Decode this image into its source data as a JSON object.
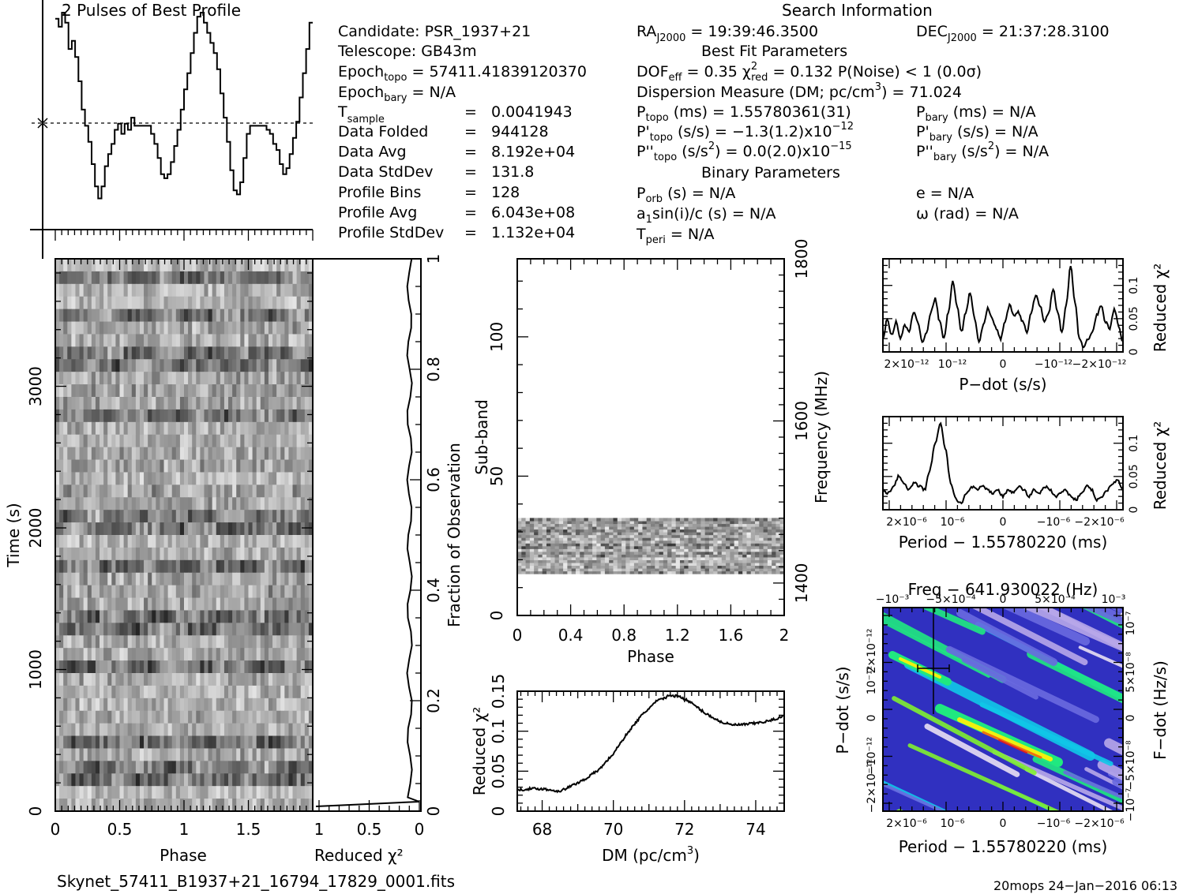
{
  "header": {
    "profile_title": "2 Pulses of Best Profile",
    "search_info_title": "Search Information",
    "best_fit_title": "Best Fit Parameters",
    "binary_title": "Binary Parameters"
  },
  "search_info": {
    "candidate": "Candidate:  PSR_1937+21",
    "telescope": "Telescope:  GB43m",
    "epoch_topo_pre": "Epoch",
    "epoch_topo_sub": "topo",
    "epoch_topo_val": " = 57411.41839120370",
    "epoch_bary_pre": "Epoch",
    "epoch_bary_sub": "bary",
    "epoch_bary_val": " = N/A",
    "tsample_pre": "T",
    "tsample_sub": "sample",
    "tsample_eq": "=",
    "tsample_val": "0.0041943",
    "rows": [
      {
        "label": "Data Folded",
        "eq": "=",
        "value": "944128"
      },
      {
        "label": "Data Avg",
        "eq": "=",
        "value": "8.192e+04"
      },
      {
        "label": "Data StdDev",
        "eq": "=",
        "value": "131.8"
      },
      {
        "label": "Profile Bins",
        "eq": "=",
        "value": "128"
      },
      {
        "label": "Profile Avg",
        "eq": "=",
        "value": "6.043e+08"
      },
      {
        "label": "Profile StdDev",
        "eq": "=",
        "value": "1.132e+04"
      }
    ],
    "ra_pre": "RA",
    "ra_sub": "J2000",
    "ra_val": " = 19:39:46.3500",
    "dec_pre": "DEC",
    "dec_sub": "J2000",
    "dec_val": " = 21:37:28.3100"
  },
  "best_fit": {
    "dof_pre": "DOF",
    "dof_sub": "eff",
    "dof_val": " = 0.35  χ",
    "chi_sup": "2",
    "chi_sub": "red",
    "chi_val": " = 0.132  P(Noise) < 1  (0.0σ)",
    "dm_line_a": "Dispersion Measure (DM; pc/cm",
    "dm_sup": "3",
    "dm_line_b": ") = 71.024",
    "ptopo_pre": "P",
    "ptopo_sub": "topo",
    "ptopo_val": " (ms) =  1.55780361(31)",
    "pdtopo_pre": "P'",
    "pdtopo_sub": "topo",
    "pdtopo_val": " (s/s) = −1.3(1.2)x10",
    "pdtopo_sup": "−12",
    "pddtopo_pre": "P''",
    "pddtopo_sub": "topo",
    "pddtopo_val": " (s/s",
    "pddtopo_sup1": "2",
    "pddtopo_val2": ") = 0.0(2.0)x10",
    "pddtopo_sup2": "−15",
    "pbary_pre": "P",
    "pbary_sub": "bary",
    "pbary_val": " (ms) = N/A",
    "pdbary_pre": "P'",
    "pdbary_sub": "bary",
    "pdbary_val": " (s/s) = N/A",
    "pddbary_pre": "P''",
    "pddbary_sub": "bary",
    "pddbary_val": " (s/s",
    "pddbary_sup": "2",
    "pddbary_val2": ") = N/A"
  },
  "binary": {
    "porb_pre": "P",
    "porb_sub": "orb",
    "porb_val": " (s) = N/A",
    "a1_pre": "a",
    "a1_sub": "1",
    "a1_val": "sin(i)/c (s) = N/A",
    "tperi_pre": "T",
    "tperi_sub": "peri",
    "tperi_val": " = N/A",
    "e": "e = N/A",
    "omega": "ω (rad) = N/A"
  },
  "footer": {
    "filename": "Skynet_57411_B1937+21_16794_17829_0001.fits",
    "stamp": "20mops 24−Jan−2016 06:13"
  },
  "chart_data": [
    {
      "type": "line",
      "id": "pulse-profile",
      "title": "2 Pulses of Best Profile",
      "x": "phase 0-2 (two rotations)",
      "values": [
        0.97,
        0.93,
        1.0,
        0.95,
        0.82,
        0.86,
        0.78,
        0.66,
        0.52,
        0.44,
        0.36,
        0.25,
        0.14,
        0.08,
        0.14,
        0.24,
        0.3,
        0.35,
        0.42,
        0.45,
        0.4,
        0.45,
        0.42,
        0.48,
        0.44,
        0.44,
        0.44,
        0.44,
        0.44,
        0.4,
        0.35,
        0.28,
        0.2,
        0.18,
        0.2,
        0.26,
        0.34,
        0.42,
        0.52,
        0.62,
        0.7,
        0.8,
        0.9,
        0.98,
        1.0,
        0.95,
        0.9,
        0.85,
        0.8,
        0.72,
        0.6,
        0.48,
        0.36,
        0.22,
        0.12,
        0.1,
        0.16,
        0.28,
        0.4,
        0.44,
        0.44,
        0.44,
        0.44,
        0.44,
        0.42,
        0.4,
        0.35,
        0.32,
        0.25,
        0.2,
        0.23,
        0.3,
        0.38,
        0.46,
        0.58,
        0.7,
        0.82,
        0.95
      ],
      "avg": 0.44,
      "error_bar": true
    },
    {
      "type": "heatmap",
      "id": "time-phase",
      "xlabel": "Phase",
      "ylabel": "Time (s)",
      "xlim": [
        0,
        2
      ],
      "ylim": [
        0,
        3900
      ],
      "xticks": [
        0,
        0.5,
        1,
        1.5
      ],
      "yticks": [
        0,
        1000,
        2000,
        3000
      ],
      "colormap": "grayscale",
      "rows": 44,
      "cols": 64
    },
    {
      "type": "line",
      "id": "time-chi2",
      "xlabel": "Reduced χ²",
      "y2label": "Fraction of Observation",
      "xticks": [
        1,
        0.5,
        0
      ],
      "y2ticks": [
        0,
        0.2,
        0.4,
        0.6,
        0.8,
        1
      ]
    },
    {
      "type": "heatmap",
      "id": "subband-phase",
      "xlabel": "Phase",
      "ylabel": "Sub-band",
      "y2label": "Frequency (MHz)",
      "xlim": [
        0,
        2
      ],
      "ylim": [
        0,
        128
      ],
      "xticks": [
        0,
        0.4,
        0.8,
        1.2,
        1.6,
        2
      ],
      "yticks": [
        0,
        50,
        100
      ],
      "y2ticks": [
        1400,
        1600,
        1800
      ],
      "occupied_subbands": [
        15,
        35
      ],
      "colormap": "grayscale"
    },
    {
      "type": "line",
      "id": "dm-chi2",
      "xlabel": "DM (pc/cm",
      "xlabel_sup": "3",
      "xlabel_end": ")",
      "ylabel": "Reduced χ²",
      "xlim": [
        67.3,
        74.8
      ],
      "ylim": [
        0,
        0.15
      ],
      "xticks": [
        68,
        70,
        72,
        74
      ],
      "yticks": [
        0,
        0.05,
        0.1,
        0.15
      ],
      "x": [
        67.3,
        67.6,
        68.0,
        68.3,
        68.5,
        68.8,
        69.2,
        69.6,
        70.0,
        70.4,
        70.8,
        71.2,
        71.6,
        71.9,
        72.2,
        72.6,
        73.0,
        73.3,
        73.6,
        74.0,
        74.4,
        74.8
      ],
      "y": [
        0.026,
        0.028,
        0.028,
        0.026,
        0.025,
        0.031,
        0.04,
        0.052,
        0.072,
        0.098,
        0.12,
        0.137,
        0.145,
        0.143,
        0.135,
        0.122,
        0.112,
        0.108,
        0.108,
        0.11,
        0.113,
        0.119
      ]
    },
    {
      "type": "line",
      "id": "pdot-chi2",
      "xlabel": "P−dot (s/s)",
      "ylabel": "Reduced χ²",
      "ylim": [
        0,
        0.14
      ],
      "xticks": [
        "2×10⁻¹²",
        "10⁻¹²",
        "0",
        "−10⁻¹²",
        "−2×10⁻¹²"
      ],
      "yticks": [
        0,
        0.05,
        0.1
      ],
      "values": [
        0.02,
        0.05,
        0.025,
        0.045,
        0.02,
        0.04,
        0.03,
        0.06,
        0.045,
        0.015,
        0.03,
        0.06,
        0.08,
        0.045,
        0.02,
        0.06,
        0.105,
        0.07,
        0.03,
        0.06,
        0.09,
        0.05,
        0.015,
        0.04,
        0.065,
        0.05,
        0.035,
        0.02,
        0.045,
        0.07,
        0.055,
        0.06,
        0.045,
        0.03,
        0.06,
        0.085,
        0.07,
        0.045,
        0.06,
        0.095,
        0.06,
        0.03,
        0.07,
        0.13,
        0.075,
        0.02,
        0.005,
        0.02,
        0.03,
        0.055,
        0.07,
        0.045,
        0.035,
        0.065,
        0.04,
        0.015
      ]
    },
    {
      "type": "line",
      "id": "period-chi2",
      "xlabel": "Period − 1.55780220 (ms)",
      "ylabel": "Reduced χ²",
      "ylim": [
        0,
        0.14
      ],
      "xticks": [
        "2×10⁻⁶",
        "10⁻⁶",
        "0",
        "−10⁻⁶",
        "−2×10⁻⁶"
      ],
      "yticks": [
        0,
        0.05,
        0.1
      ],
      "values": [
        0.03,
        0.025,
        0.035,
        0.05,
        0.04,
        0.03,
        0.04,
        0.035,
        0.03,
        0.06,
        0.1,
        0.13,
        0.09,
        0.04,
        0.015,
        0.01,
        0.025,
        0.035,
        0.03,
        0.035,
        0.03,
        0.025,
        0.03,
        0.02,
        0.03,
        0.025,
        0.035,
        0.03,
        0.02,
        0.03,
        0.025,
        0.035,
        0.03,
        0.02,
        0.025,
        0.03,
        0.02,
        0.015,
        0.025,
        0.035,
        0.03,
        0.015,
        0.02,
        0.03,
        0.04,
        0.045,
        0.03
      ]
    },
    {
      "type": "heatmap",
      "id": "period-pdot",
      "title": "Freq − 641.930022 (Hz)",
      "xlabel": "Period − 1.55780220 (ms)",
      "ylabel": "P−dot (s/s)",
      "y2label": "F−dot (Hz/s)",
      "xticks": [
        "2×10⁻⁶",
        "10⁻⁶",
        "0",
        "−10⁻⁶",
        "−2×10⁻⁶"
      ],
      "x2ticks": [
        "−10⁻³",
        "−5×10⁻⁴",
        "0",
        "5×10⁻⁴",
        "10⁻³"
      ],
      "yticks": [
        "2×10⁻¹²",
        "10⁻¹²",
        "0",
        "−10⁻¹²",
        "−2×10⁻¹²"
      ],
      "y2ticks": [
        "10⁻⁷",
        "5×10⁻⁸",
        "0",
        "−5×10⁻⁸",
        "−10⁻⁷"
      ],
      "colormap": "rainbow",
      "colors": [
        "#3030c0",
        "#6a6ae0",
        "#b8a8ea",
        "#e8e0f4",
        "#10c8e8",
        "#20e880",
        "#80f030",
        "#f0f010",
        "#f07010",
        "#e02020"
      ]
    }
  ]
}
